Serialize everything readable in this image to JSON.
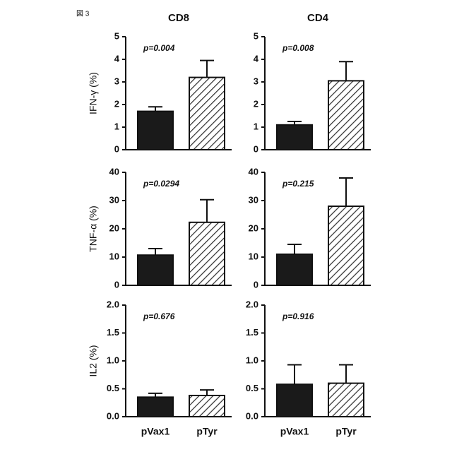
{
  "figure_label": "図 3",
  "chart_data": [
    {
      "type": "bar",
      "title": "CD8",
      "ylabel": "IFN-γ (%)",
      "annotation": "p=0.004",
      "categories": [
        null,
        null
      ],
      "values": [
        1.7,
        3.2
      ],
      "errors": [
        0.2,
        0.75
      ],
      "ylim": [
        0,
        5
      ],
      "yticks": [
        0,
        1,
        2,
        3,
        4,
        5
      ],
      "colors": [
        "#1a1a1a",
        "#ffffff"
      ],
      "hatch": [
        false,
        true
      ]
    },
    {
      "type": "bar",
      "title": "CD4",
      "annotation": "p=0.008",
      "categories": [
        null,
        null
      ],
      "values": [
        1.1,
        3.05
      ],
      "errors": [
        0.15,
        0.85
      ],
      "ylim": [
        0,
        5
      ],
      "yticks": [
        0,
        1,
        2,
        3,
        4,
        5
      ],
      "colors": [
        "#1a1a1a",
        "#ffffff"
      ],
      "hatch": [
        false,
        true
      ]
    },
    {
      "type": "bar",
      "ylabel": "TNF-α (%)",
      "annotation": "p=0.0294",
      "categories": [
        null,
        null
      ],
      "values": [
        10.7,
        22.3
      ],
      "errors": [
        2.3,
        8
      ],
      "ylim": [
        0,
        40
      ],
      "yticks": [
        0,
        10,
        20,
        30,
        40
      ],
      "colors": [
        "#1a1a1a",
        "#ffffff"
      ],
      "hatch": [
        false,
        true
      ]
    },
    {
      "type": "bar",
      "annotation": "p=0.215",
      "categories": [
        null,
        null
      ],
      "values": [
        11,
        28
      ],
      "errors": [
        3.5,
        10
      ],
      "ylim": [
        0,
        40
      ],
      "yticks": [
        0,
        10,
        20,
        30,
        40
      ],
      "colors": [
        "#1a1a1a",
        "#ffffff"
      ],
      "hatch": [
        false,
        true
      ]
    },
    {
      "type": "bar",
      "ylabel": "IL2 (%)",
      "annotation": "p=0.676",
      "categories": [
        "pVax1",
        "pTyr"
      ],
      "values": [
        0.35,
        0.38
      ],
      "errors": [
        0.07,
        0.1
      ],
      "ylim": [
        0,
        2
      ],
      "yticks": [
        {
          "value": 0,
          "label": "0.0"
        },
        0.5,
        {
          "value": 1,
          "label": "1.0"
        },
        1.5,
        {
          "value": 2,
          "label": "2.0"
        }
      ],
      "colors": [
        "#1a1a1a",
        "#ffffff"
      ],
      "hatch": [
        false,
        true
      ]
    },
    {
      "type": "bar",
      "annotation": "p=0.916",
      "categories": [
        "pVax1",
        "pTyr"
      ],
      "values": [
        0.58,
        0.6
      ],
      "errors": [
        0.35,
        0.33
      ],
      "ylim": [
        0,
        2
      ],
      "yticks": [
        {
          "value": 0,
          "label": "0.0"
        },
        0.5,
        {
          "value": 1,
          "label": "1.0"
        },
        1.5,
        {
          "value": 2,
          "label": "2.0"
        }
      ],
      "colors": [
        "#1a1a1a",
        "#ffffff"
      ],
      "hatch": [
        false,
        true
      ]
    }
  ]
}
